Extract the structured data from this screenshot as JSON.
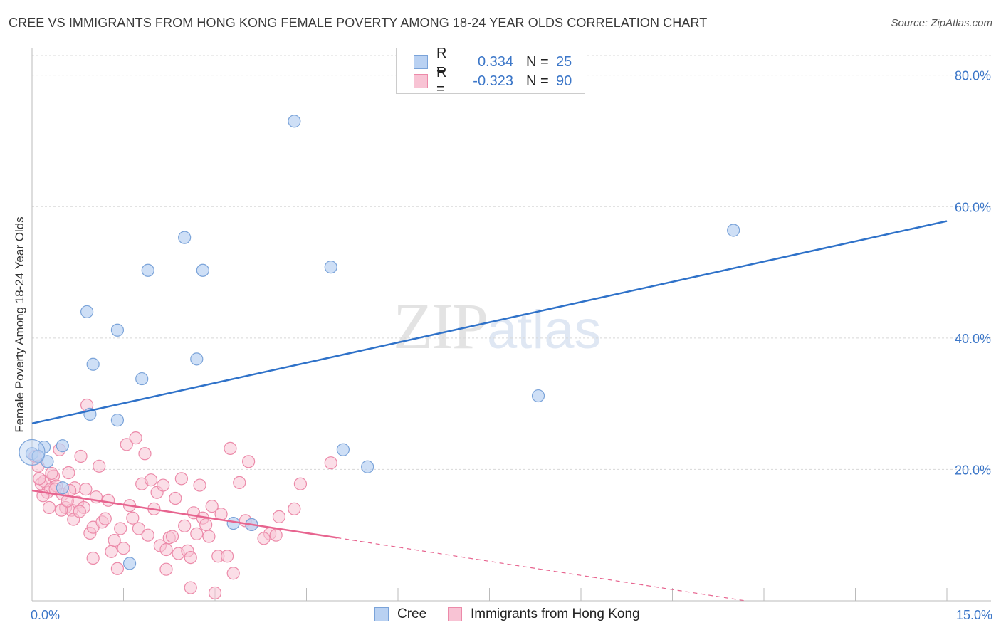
{
  "title": "CREE VS IMMIGRANTS FROM HONG KONG FEMALE POVERTY AMONG 18-24 YEAR OLDS CORRELATION CHART",
  "source": "Source: ZipAtlas.com",
  "watermark": {
    "zip": "ZIP",
    "atlas": "atlas"
  },
  "legend": {
    "r_label": "R =",
    "n_label": "N =",
    "series": [
      {
        "name": "Cree",
        "r": "0.334",
        "n": "25"
      },
      {
        "name": "Immigrants from Hong Kong",
        "r": "-0.323",
        "n": "90"
      }
    ]
  },
  "colors": {
    "cree_fill": "#b9d1f2",
    "cree_stroke": "#7aa3d9",
    "cree_line": "#2f72c9",
    "hk_fill": "#f8c3d4",
    "hk_stroke": "#ec8aa9",
    "hk_line": "#e7648f",
    "grid": "#d8d8d8",
    "axis_text": "#3b76c8"
  },
  "chart_data": {
    "type": "scatter",
    "title": "CREE VS IMMIGRANTS FROM HONG KONG FEMALE POVERTY AMONG 18-24 YEAR OLDS CORRELATION CHART",
    "xlabel": "",
    "ylabel": "Female Poverty Among 18-24 Year Olds",
    "xlim": [
      0,
      15
    ],
    "ylim": [
      0,
      83
    ],
    "x_tick_labels": [
      "0.0%",
      "15.0%"
    ],
    "y_ticks": [
      20,
      40,
      60,
      80
    ],
    "y_tick_labels": [
      "20.0%",
      "40.0%",
      "60.0%",
      "80.0%"
    ],
    "series": [
      {
        "name": "Cree",
        "points": [
          [
            0.0,
            22.4
          ],
          [
            0.2,
            23.4
          ],
          [
            0.5,
            23.6
          ],
          [
            0.1,
            22.0
          ],
          [
            0.5,
            17.2
          ],
          [
            0.9,
            44.0
          ],
          [
            1.0,
            36.0
          ],
          [
            1.4,
            41.2
          ],
          [
            0.95,
            28.4
          ],
          [
            1.4,
            27.5
          ],
          [
            1.8,
            33.8
          ],
          [
            1.9,
            50.3
          ],
          [
            2.5,
            55.3
          ],
          [
            2.8,
            50.3
          ],
          [
            2.7,
            36.8
          ],
          [
            3.3,
            11.8
          ],
          [
            3.6,
            11.6
          ],
          [
            1.6,
            5.7
          ],
          [
            4.3,
            73.0
          ],
          [
            4.9,
            50.8
          ],
          [
            5.1,
            23.0
          ],
          [
            5.5,
            20.4
          ],
          [
            8.3,
            31.2
          ],
          [
            11.5,
            56.4
          ],
          [
            0.25,
            21.2
          ]
        ],
        "trend": {
          "x0": 0.0,
          "y0": 27.0,
          "x1": 15.0,
          "y1": 57.8
        }
      },
      {
        "name": "Immigrants from Hong Kong",
        "points": [
          [
            0.05,
            22.0
          ],
          [
            0.1,
            20.5
          ],
          [
            0.15,
            17.8
          ],
          [
            0.2,
            18.2
          ],
          [
            0.25,
            16.5
          ],
          [
            0.3,
            17.0
          ],
          [
            0.35,
            19.0
          ],
          [
            0.4,
            17.5
          ],
          [
            0.45,
            23.0
          ],
          [
            0.5,
            16.2
          ],
          [
            0.55,
            14.2
          ],
          [
            0.6,
            19.5
          ],
          [
            0.65,
            13.8
          ],
          [
            0.7,
            17.2
          ],
          [
            0.75,
            15.0
          ],
          [
            0.8,
            22.0
          ],
          [
            0.85,
            14.2
          ],
          [
            0.9,
            29.8
          ],
          [
            0.95,
            10.3
          ],
          [
            1.0,
            11.2
          ],
          [
            1.05,
            15.8
          ],
          [
            1.1,
            20.5
          ],
          [
            1.15,
            12.0
          ],
          [
            1.2,
            12.5
          ],
          [
            1.25,
            15.3
          ],
          [
            1.3,
            7.5
          ],
          [
            1.35,
            9.2
          ],
          [
            1.4,
            4.9
          ],
          [
            1.45,
            11.0
          ],
          [
            1.5,
            8.0
          ],
          [
            1.55,
            23.8
          ],
          [
            1.6,
            14.5
          ],
          [
            1.65,
            12.6
          ],
          [
            1.7,
            24.8
          ],
          [
            1.75,
            11.0
          ],
          [
            1.8,
            17.8
          ],
          [
            1.85,
            22.4
          ],
          [
            1.9,
            10.0
          ],
          [
            1.95,
            18.4
          ],
          [
            2.0,
            14.0
          ],
          [
            2.05,
            16.5
          ],
          [
            2.1,
            8.4
          ],
          [
            2.15,
            17.6
          ],
          [
            2.2,
            7.8
          ],
          [
            2.25,
            9.6
          ],
          [
            2.3,
            9.8
          ],
          [
            2.35,
            15.6
          ],
          [
            2.4,
            7.2
          ],
          [
            2.45,
            18.6
          ],
          [
            2.5,
            11.4
          ],
          [
            2.55,
            7.6
          ],
          [
            2.6,
            6.6
          ],
          [
            2.65,
            13.4
          ],
          [
            2.7,
            10.2
          ],
          [
            2.75,
            17.6
          ],
          [
            2.8,
            12.6
          ],
          [
            2.85,
            11.6
          ],
          [
            2.9,
            9.8
          ],
          [
            2.95,
            14.4
          ],
          [
            3.0,
            1.2
          ],
          [
            3.05,
            6.8
          ],
          [
            3.1,
            13.2
          ],
          [
            3.2,
            6.8
          ],
          [
            3.25,
            23.2
          ],
          [
            3.3,
            4.2
          ],
          [
            3.4,
            18.0
          ],
          [
            3.5,
            12.2
          ],
          [
            3.55,
            21.2
          ],
          [
            3.6,
            11.6
          ],
          [
            3.9,
            10.2
          ],
          [
            4.0,
            10.0
          ],
          [
            4.05,
            12.8
          ],
          [
            4.3,
            14.0
          ],
          [
            4.4,
            17.8
          ],
          [
            4.9,
            21.0
          ],
          [
            0.12,
            18.6
          ],
          [
            0.18,
            16.0
          ],
          [
            0.28,
            14.2
          ],
          [
            0.38,
            17.0
          ],
          [
            0.48,
            13.8
          ],
          [
            0.58,
            15.2
          ],
          [
            0.68,
            12.4
          ],
          [
            0.78,
            13.6
          ],
          [
            0.88,
            17.0
          ],
          [
            2.6,
            2.0
          ],
          [
            2.2,
            4.8
          ],
          [
            1.0,
            6.5
          ],
          [
            3.8,
            9.5
          ],
          [
            0.62,
            16.8
          ],
          [
            0.32,
            19.4
          ]
        ],
        "trend": {
          "x0": 0.0,
          "y0": 16.8,
          "x1": 5.0,
          "y1": 9.6
        },
        "trend_extension": {
          "x0": 5.0,
          "y0": 9.6,
          "x1": 11.7,
          "y1": 0.0
        }
      }
    ]
  }
}
